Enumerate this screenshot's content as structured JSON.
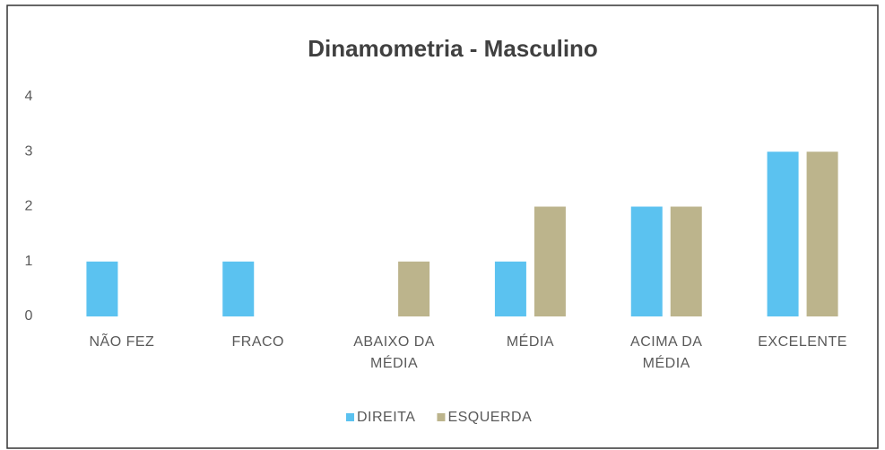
{
  "chart_data": {
    "type": "bar",
    "title": "Dinamometria - Masculino",
    "categories": [
      "NÃO FEZ",
      "FRACO",
      "ABAIXO DA MÉDIA",
      "MÉDIA",
      "ACIMA DA MÉDIA",
      "EXCELENTE"
    ],
    "series": [
      {
        "name": "DIREITA",
        "color": "#5bc2f0",
        "values": [
          1,
          1,
          0,
          1,
          2,
          3
        ]
      },
      {
        "name": "ESQUERDA",
        "color": "#bcb48c",
        "values": [
          0,
          0,
          1,
          2,
          2,
          3
        ]
      }
    ],
    "ylim": [
      0,
      4
    ],
    "yticks": [
      0,
      1,
      2,
      3,
      4
    ],
    "grid": false,
    "legend": "bottom"
  }
}
